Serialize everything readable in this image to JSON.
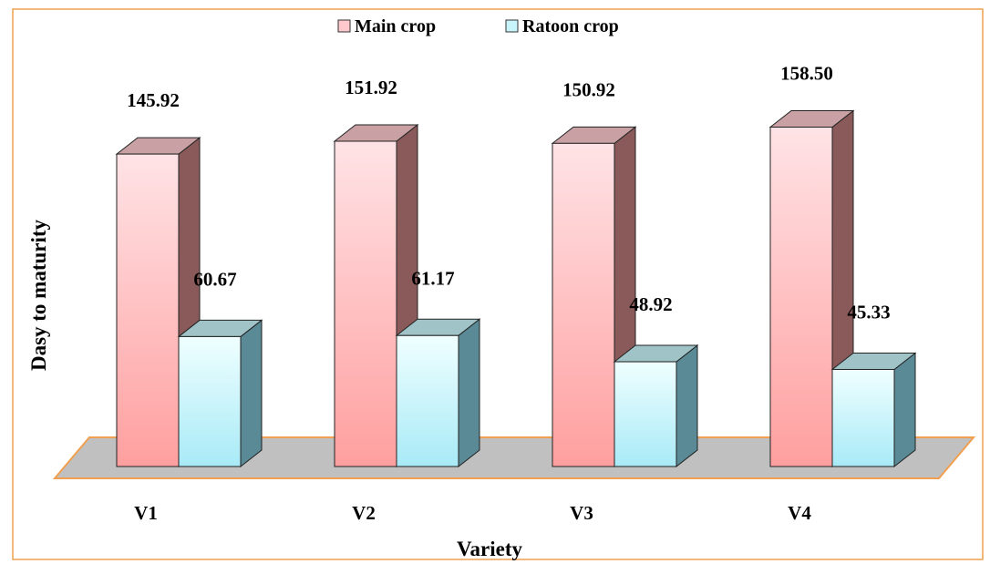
{
  "chart_data": {
    "type": "bar",
    "style": "3d",
    "categories": [
      "V1",
      "V2",
      "V3",
      "V4"
    ],
    "series": [
      {
        "name": "Main crop",
        "values": [
          145.92,
          151.92,
          150.92,
          158.5
        ]
      },
      {
        "name": "Ratoon crop",
        "values": [
          60.67,
          61.17,
          48.92,
          45.33
        ]
      }
    ],
    "value_labels": {
      "Main crop": [
        "145.92",
        "151.92",
        "150.92",
        "158.50"
      ],
      "Ratoon crop": [
        "60.67",
        "61.17",
        "48.92",
        "45.33"
      ]
    },
    "xlabel": "Variety",
    "ylabel": "Dasy to maturity",
    "grid": false,
    "legend_placement": "top-center",
    "colors": {
      "main_front_top": "#ffe3e6",
      "main_front_bottom": "#ff9f9f",
      "main_side": "#8a5a5a",
      "main_top": "#c9a0a3",
      "ratoon_front_top": "#f0ffff",
      "ratoon_front_bottom": "#a8eaf7",
      "ratoon_side": "#5a8a96",
      "ratoon_top": "#9fc3c6",
      "floor": "#c0c0c0",
      "floor_edge": "#f0a050",
      "frame_border": "#f0a050"
    }
  }
}
